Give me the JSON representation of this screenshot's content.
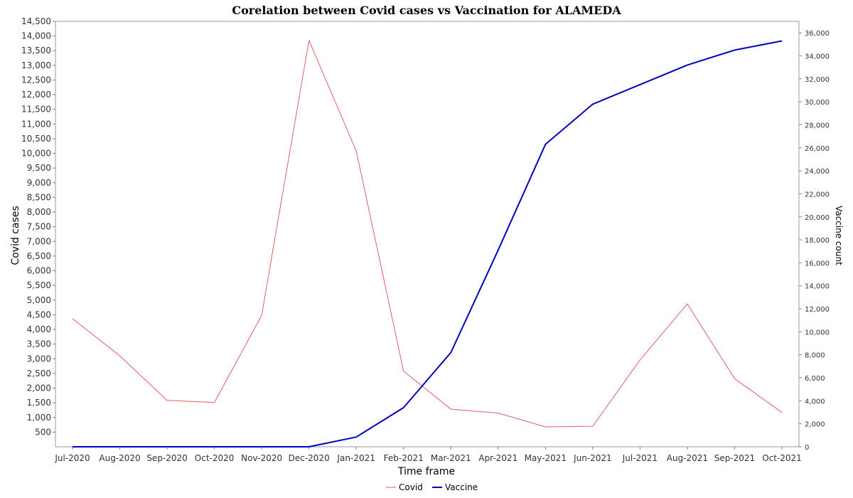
{
  "chart_data": {
    "type": "line",
    "title": "Corelation between Covid cases vs Vaccination for ALAMEDA",
    "xlabel": "Time frame",
    "ylabel": "Covid cases",
    "y2label": "Vaccine count",
    "categories": [
      "Jul-2020",
      "Aug-2020",
      "Sep-2020",
      "Oct-2020",
      "Nov-2020",
      "Dec-2020",
      "Jan-2021",
      "Feb-2021",
      "Mar-2021",
      "Apr-2021",
      "May-2021",
      "Jun-2021",
      "Jul-2021",
      "Aug-2021",
      "Sep-2021",
      "Oct-2021"
    ],
    "ylim": [
      0,
      14500
    ],
    "y2lim": [
      0,
      37000
    ],
    "yticks": [
      500,
      1000,
      1500,
      2000,
      2500,
      3000,
      3500,
      4000,
      4500,
      5000,
      5500,
      6000,
      6500,
      7000,
      7500,
      8000,
      8500,
      9000,
      9500,
      10000,
      10500,
      11000,
      11500,
      12000,
      12500,
      13000,
      13500,
      14000,
      14500
    ],
    "y2ticks": [
      0,
      2000,
      4000,
      6000,
      8000,
      10000,
      12000,
      14000,
      16000,
      18000,
      20000,
      22000,
      24000,
      26000,
      28000,
      30000,
      32000,
      34000,
      36000
    ],
    "grid": true,
    "legend_position": "bottom",
    "series": [
      {
        "name": "Covid",
        "axis": "left",
        "color": "#e06060",
        "values": [
          4370,
          3100,
          1580,
          1510,
          4480,
          13850,
          10080,
          2580,
          1280,
          1150,
          680,
          700,
          2960,
          4870,
          2320,
          1170
        ]
      },
      {
        "name": "Vaccine",
        "axis": "right",
        "color": "#0000c0",
        "values": [
          0,
          0,
          0,
          0,
          0,
          0,
          850,
          3400,
          8200,
          17100,
          26300,
          29800,
          31500,
          33200,
          34500,
          35300
        ]
      }
    ]
  }
}
